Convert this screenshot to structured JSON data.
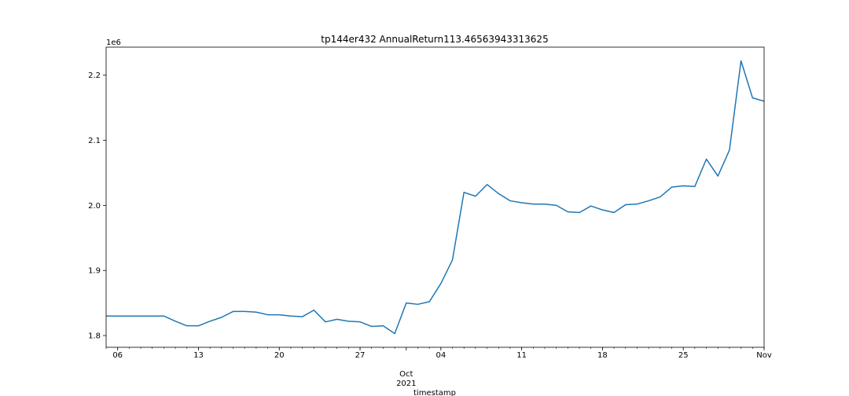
{
  "chart_data": {
    "type": "line",
    "title": "tp144er432 AnnualReturn113.46563943313625",
    "xlabel": "timestamp",
    "ylabel": "",
    "y_offset_label": "1e6",
    "xlim": [
      "2021-09-05",
      "2021-11-01"
    ],
    "ylim": [
      1.782,
      2.243
    ],
    "yticks": [
      {
        "value": 1.8,
        "label": "1.8"
      },
      {
        "value": 1.9,
        "label": "1.9"
      },
      {
        "value": 2.0,
        "label": "2.0"
      },
      {
        "value": 2.1,
        "label": "2.1"
      },
      {
        "value": 2.2,
        "label": "2.2"
      }
    ],
    "xticks": [
      {
        "date": "2021-09-06",
        "label": "06"
      },
      {
        "date": "2021-09-13",
        "label": "13"
      },
      {
        "date": "2021-09-20",
        "label": "20"
      },
      {
        "date": "2021-09-27",
        "label": "27"
      },
      {
        "date": "2021-10-01",
        "label": "Oct\n2021"
      },
      {
        "date": "2021-10-04",
        "label": "04"
      },
      {
        "date": "2021-10-11",
        "label": "11"
      },
      {
        "date": "2021-10-18",
        "label": "18"
      },
      {
        "date": "2021-10-25",
        "label": "25"
      },
      {
        "date": "2021-11-01",
        "label": "Nov"
      }
    ],
    "series": [
      {
        "color": "#1f77b4",
        "points": [
          [
            "2021-09-05",
            1.83
          ],
          [
            "2021-09-06",
            1.83
          ],
          [
            "2021-09-07",
            1.83
          ],
          [
            "2021-09-08",
            1.83
          ],
          [
            "2021-09-09",
            1.83
          ],
          [
            "2021-09-10",
            1.83
          ],
          [
            "2021-09-11",
            1.822
          ],
          [
            "2021-09-12",
            1.815
          ],
          [
            "2021-09-13",
            1.815
          ],
          [
            "2021-09-14",
            1.822
          ],
          [
            "2021-09-15",
            1.828
          ],
          [
            "2021-09-16",
            1.837
          ],
          [
            "2021-09-17",
            1.837
          ],
          [
            "2021-09-18",
            1.836
          ],
          [
            "2021-09-19",
            1.832
          ],
          [
            "2021-09-20",
            1.832
          ],
          [
            "2021-09-21",
            1.83
          ],
          [
            "2021-09-22",
            1.829
          ],
          [
            "2021-09-23",
            1.839
          ],
          [
            "2021-09-24",
            1.821
          ],
          [
            "2021-09-25",
            1.825
          ],
          [
            "2021-09-26",
            1.822
          ],
          [
            "2021-09-27",
            1.821
          ],
          [
            "2021-09-28",
            1.814
          ],
          [
            "2021-09-29",
            1.815
          ],
          [
            "2021-09-30",
            1.803
          ],
          [
            "2021-10-01",
            1.85
          ],
          [
            "2021-10-02",
            1.848
          ],
          [
            "2021-10-03",
            1.852
          ],
          [
            "2021-10-04",
            1.88
          ],
          [
            "2021-10-05",
            1.916
          ],
          [
            "2021-10-06",
            2.02
          ],
          [
            "2021-10-07",
            2.014
          ],
          [
            "2021-10-08",
            2.032
          ],
          [
            "2021-10-09",
            2.018
          ],
          [
            "2021-10-10",
            2.007
          ],
          [
            "2021-10-11",
            2.004
          ],
          [
            "2021-10-12",
            2.002
          ],
          [
            "2021-10-13",
            2.002
          ],
          [
            "2021-10-14",
            2.0
          ],
          [
            "2021-10-15",
            1.99
          ],
          [
            "2021-10-16",
            1.989
          ],
          [
            "2021-10-17",
            1.999
          ],
          [
            "2021-10-18",
            1.993
          ],
          [
            "2021-10-19",
            1.989
          ],
          [
            "2021-10-20",
            2.001
          ],
          [
            "2021-10-21",
            2.002
          ],
          [
            "2021-10-22",
            2.007
          ],
          [
            "2021-10-23",
            2.013
          ],
          [
            "2021-10-24",
            2.028
          ],
          [
            "2021-10-25",
            2.03
          ],
          [
            "2021-10-26",
            2.029
          ],
          [
            "2021-10-27",
            2.071
          ],
          [
            "2021-10-28",
            2.045
          ],
          [
            "2021-10-29",
            2.085
          ],
          [
            "2021-10-30",
            2.222
          ],
          [
            "2021-10-31",
            2.165
          ],
          [
            "2021-11-01",
            2.16
          ]
        ]
      }
    ],
    "grid": false,
    "legend": "none"
  }
}
